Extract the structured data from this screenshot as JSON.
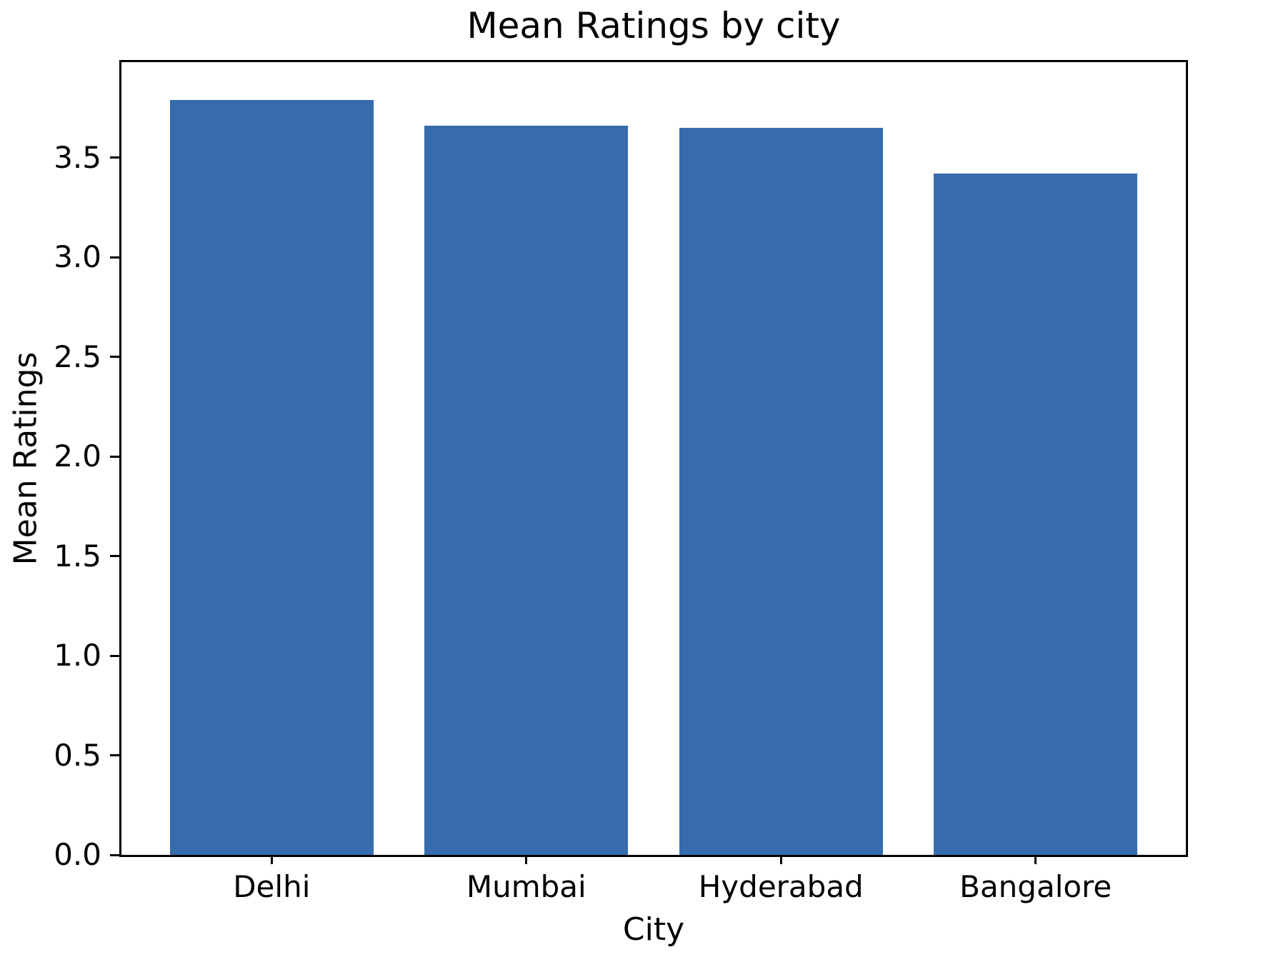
{
  "chart_data": {
    "type": "bar",
    "title": "Mean Ratings by city",
    "xlabel": "City",
    "ylabel": "Mean Ratings",
    "categories": [
      "Delhi",
      "Mumbai",
      "Hyderabad",
      "Bangalore"
    ],
    "values": [
      3.79,
      3.66,
      3.65,
      3.42
    ],
    "ylim": [
      0,
      3.98
    ],
    "yticks": [
      0.0,
      0.5,
      1.0,
      1.5,
      2.0,
      2.5,
      3.0,
      3.5
    ],
    "ytick_labels": [
      "0.0",
      "0.5",
      "1.0",
      "1.5",
      "2.0",
      "2.5",
      "3.0",
      "3.5"
    ],
    "xlim": [
      -0.59,
      3.59
    ],
    "bar_width_units": 0.8,
    "bar_color": "#366cad",
    "spine_color": "#000000",
    "grid": false,
    "legend": "none"
  }
}
